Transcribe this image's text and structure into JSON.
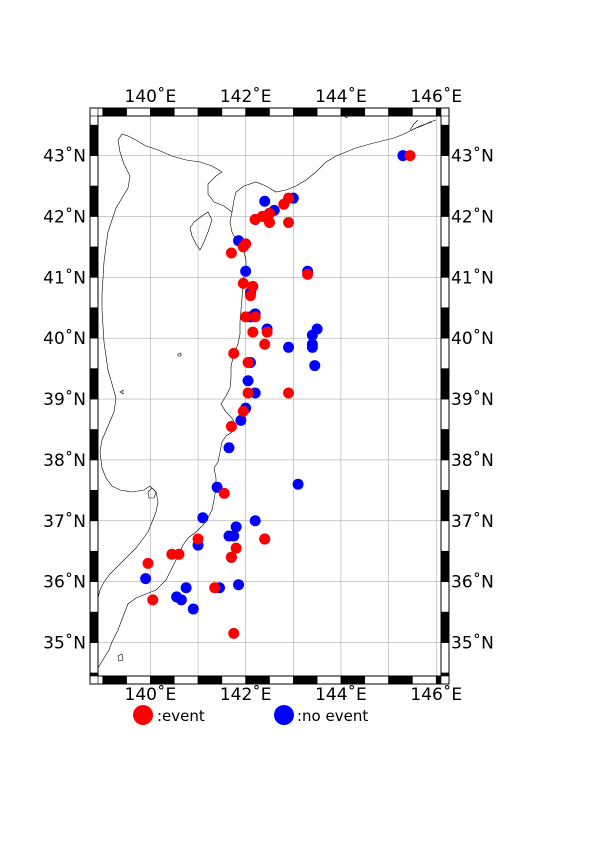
{
  "map": {
    "lon_labels": [
      "140˚E",
      "142˚E",
      "144˚E",
      "146˚E"
    ],
    "lat_labels": [
      "35˚N",
      "36˚N",
      "37˚N",
      "38˚N",
      "39˚N",
      "40˚N",
      "41˚N",
      "42˚N",
      "43˚N"
    ],
    "lon_range": [
      138.9,
      146.1
    ],
    "lat_range": [
      34.45,
      43.65
    ],
    "lon_label_values": [
      140,
      142,
      144,
      146
    ],
    "lat_label_values": [
      35,
      36,
      37,
      38,
      39,
      40,
      41,
      42,
      43
    ],
    "grid": true,
    "frame": "checkered"
  },
  "legend": {
    "event_label": ":event",
    "no_event_label": ":no event",
    "event_color": "#ff0000",
    "no_event_color": "#0000ff"
  },
  "points": {
    "no_event": [
      [
        145.3,
        43.0
      ],
      [
        143.0,
        42.3
      ],
      [
        142.6,
        42.1
      ],
      [
        142.4,
        42.25
      ],
      [
        142.5,
        42.05
      ],
      [
        142.2,
        41.95
      ],
      [
        141.85,
        41.6
      ],
      [
        142.0,
        41.1
      ],
      [
        143.3,
        41.1
      ],
      [
        142.1,
        40.75
      ],
      [
        142.2,
        40.4
      ],
      [
        142.1,
        40.35
      ],
      [
        142.45,
        40.15
      ],
      [
        143.5,
        40.15
      ],
      [
        143.4,
        40.05
      ],
      [
        143.4,
        39.9
      ],
      [
        143.4,
        39.85
      ],
      [
        142.9,
        39.85
      ],
      [
        142.1,
        39.6
      ],
      [
        143.45,
        39.55
      ],
      [
        142.05,
        39.3
      ],
      [
        142.2,
        39.1
      ],
      [
        142.0,
        38.85
      ],
      [
        141.9,
        38.65
      ],
      [
        141.65,
        38.2
      ],
      [
        143.1,
        37.6
      ],
      [
        141.4,
        37.55
      ],
      [
        141.1,
        37.05
      ],
      [
        142.2,
        37.0
      ],
      [
        141.8,
        36.9
      ],
      [
        141.75,
        36.75
      ],
      [
        141.65,
        36.75
      ],
      [
        142.4,
        36.7
      ],
      [
        141.0,
        36.6
      ],
      [
        141.7,
        36.4
      ],
      [
        139.9,
        36.05
      ],
      [
        141.85,
        35.95
      ],
      [
        140.75,
        35.9
      ],
      [
        141.45,
        35.9
      ],
      [
        140.55,
        35.75
      ],
      [
        140.65,
        35.7
      ],
      [
        140.9,
        35.55
      ]
    ],
    "event": [
      [
        145.45,
        43.0
      ],
      [
        142.9,
        42.3
      ],
      [
        142.8,
        42.2
      ],
      [
        142.5,
        42.05
      ],
      [
        142.35,
        42.0
      ],
      [
        142.2,
        41.95
      ],
      [
        142.5,
        41.9
      ],
      [
        142.9,
        41.9
      ],
      [
        142.0,
        41.55
      ],
      [
        141.95,
        41.5
      ],
      [
        141.7,
        41.4
      ],
      [
        143.3,
        41.05
      ],
      [
        141.95,
        40.9
      ],
      [
        142.15,
        40.85
      ],
      [
        142.1,
        40.7
      ],
      [
        142.0,
        40.35
      ],
      [
        142.2,
        40.35
      ],
      [
        142.15,
        40.1
      ],
      [
        142.45,
        40.1
      ],
      [
        142.4,
        39.9
      ],
      [
        141.75,
        39.75
      ],
      [
        142.05,
        39.6
      ],
      [
        142.05,
        39.1
      ],
      [
        142.9,
        39.1
      ],
      [
        141.95,
        38.8
      ],
      [
        141.7,
        38.55
      ],
      [
        141.55,
        37.45
      ],
      [
        142.4,
        36.7
      ],
      [
        141.0,
        36.7
      ],
      [
        141.8,
        36.55
      ],
      [
        140.45,
        36.45
      ],
      [
        140.6,
        36.45
      ],
      [
        139.95,
        36.3
      ],
      [
        141.7,
        36.4
      ],
      [
        141.35,
        35.9
      ],
      [
        140.05,
        35.7
      ],
      [
        141.75,
        35.15
      ]
    ]
  }
}
